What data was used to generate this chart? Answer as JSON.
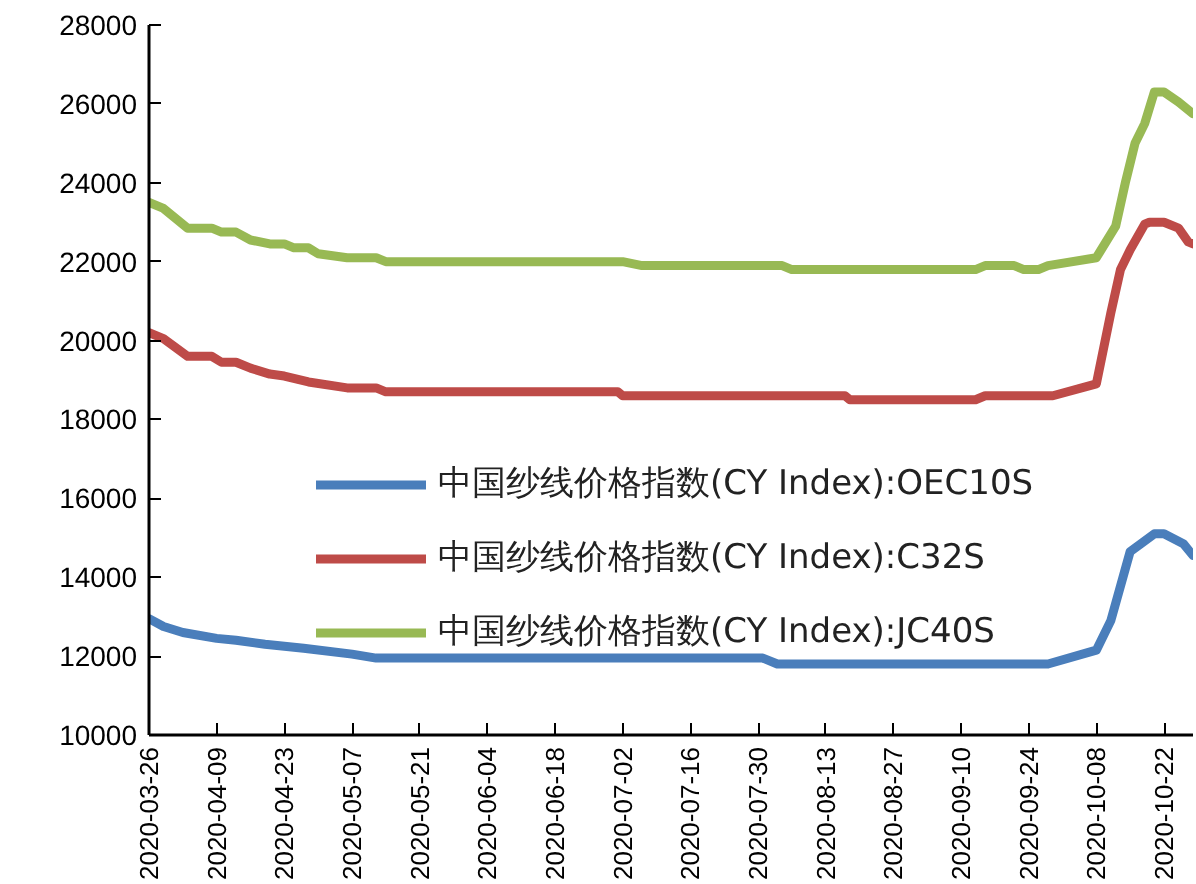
{
  "chart_data": {
    "type": "line",
    "xlim": [
      "2020-03-26",
      "2020-10-28"
    ],
    "xticks": [
      "2020-03-26",
      "2020-04-09",
      "2020-04-23",
      "2020-05-07",
      "2020-05-21",
      "2020-06-04",
      "2020-06-18",
      "2020-07-02",
      "2020-07-16",
      "2020-07-30",
      "2020-08-13",
      "2020-08-27",
      "2020-09-10",
      "2020-09-24",
      "2020-10-08",
      "2020-10-22"
    ],
    "ylim": [
      10000,
      28000
    ],
    "yticks": [
      10000,
      12000,
      14000,
      16000,
      18000,
      20000,
      22000,
      24000,
      26000,
      28000
    ],
    "grid": false,
    "legend": "center",
    "line_style": "solid",
    "marker": "none",
    "series": [
      {
        "name": "中国纱线价格指数(CY Index):OEC10S",
        "color": "#4a7ebb",
        "x": [
          "2020-03-26",
          "2020-03-29",
          "2020-04-02",
          "2020-04-09",
          "2020-04-13",
          "2020-04-19",
          "2020-04-27",
          "2020-05-07",
          "2020-05-12",
          "2020-07-31",
          "2020-08-03",
          "2020-09-28",
          "2020-10-08",
          "2020-10-11",
          "2020-10-15",
          "2020-10-20",
          "2020-10-22",
          "2020-10-26",
          "2020-10-28"
        ],
        "values": [
          12950,
          12750,
          12600,
          12450,
          12400,
          12300,
          12200,
          12050,
          11950,
          11950,
          11800,
          11800,
          12150,
          12900,
          14650,
          15100,
          15100,
          14850,
          14550
        ]
      },
      {
        "name": "中国纱线价格指数(CY Index):C32S",
        "color": "#be4b48",
        "x": [
          "2020-03-26",
          "2020-03-29",
          "2020-04-03",
          "2020-04-08",
          "2020-04-10",
          "2020-04-13",
          "2020-04-16",
          "2020-04-20",
          "2020-04-23",
          "2020-04-28",
          "2020-05-06",
          "2020-05-12",
          "2020-05-14",
          "2020-07-01",
          "2020-07-02",
          "2020-08-17",
          "2020-08-18",
          "2020-09-13",
          "2020-09-15",
          "2020-09-29",
          "2020-10-08",
          "2020-10-11",
          "2020-10-13",
          "2020-10-15",
          "2020-10-18",
          "2020-10-19",
          "2020-10-22",
          "2020-10-25",
          "2020-10-27",
          "2020-10-28"
        ],
        "values": [
          20200,
          20050,
          19600,
          19600,
          19450,
          19450,
          19300,
          19150,
          19100,
          18950,
          18800,
          18800,
          18700,
          18700,
          18600,
          18600,
          18500,
          18500,
          18600,
          18600,
          18900,
          20700,
          21800,
          22300,
          22950,
          23000,
          23000,
          22850,
          22500,
          22450
        ]
      },
      {
        "name": "中国纱线价格指数(CY Index):JC40S",
        "color": "#98b954",
        "x": [
          "2020-03-26",
          "2020-03-29",
          "2020-04-03",
          "2020-04-08",
          "2020-04-10",
          "2020-04-13",
          "2020-04-16",
          "2020-04-20",
          "2020-04-23",
          "2020-04-25",
          "2020-04-28",
          "2020-04-30",
          "2020-05-06",
          "2020-05-12",
          "2020-05-14",
          "2020-07-02",
          "2020-07-06",
          "2020-08-04",
          "2020-08-06",
          "2020-09-13",
          "2020-09-15",
          "2020-09-21",
          "2020-09-23",
          "2020-09-26",
          "2020-09-28",
          "2020-10-08",
          "2020-10-12",
          "2020-10-14",
          "2020-10-16",
          "2020-10-18",
          "2020-10-20",
          "2020-10-22",
          "2020-10-25",
          "2020-10-28"
        ],
        "values": [
          23500,
          23350,
          22850,
          22850,
          22750,
          22750,
          22550,
          22450,
          22450,
          22350,
          22350,
          22200,
          22100,
          22100,
          22000,
          22000,
          21900,
          21900,
          21800,
          21800,
          21900,
          21900,
          21800,
          21800,
          21900,
          22100,
          22900,
          24000,
          25000,
          25500,
          26300,
          26300,
          26050,
          25750
        ]
      }
    ]
  }
}
